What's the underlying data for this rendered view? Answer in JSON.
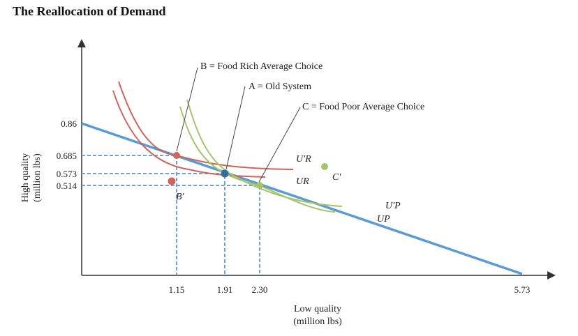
{
  "title": "The Reallocation of Demand",
  "x_axis": {
    "label_line1": "Low quality",
    "label_line2": "(million lbs)",
    "ticks": [
      "1.15",
      "1.91",
      "2.30",
      "5.73"
    ]
  },
  "y_axis": {
    "label_line1": "High quality",
    "label_line2": "(million lbs)",
    "ticks": [
      "0.86",
      "0.685",
      "0.573",
      "0.514"
    ]
  },
  "annotations": {
    "B": "B = Food Rich Average Choice",
    "A": "A = Old System",
    "C": "C = Food Poor Average Choice"
  },
  "points": {
    "B_prime": "B′",
    "C_prime": "C′"
  },
  "curves": {
    "UR_prime": "U′R",
    "UR": "UR",
    "UP_prime": "U′P",
    "UP": "UP"
  },
  "colors": {
    "budget": "#5b9bd5",
    "rich": "#d0645a",
    "poor": "#a6c46a",
    "old": "#2e6d9e"
  }
}
